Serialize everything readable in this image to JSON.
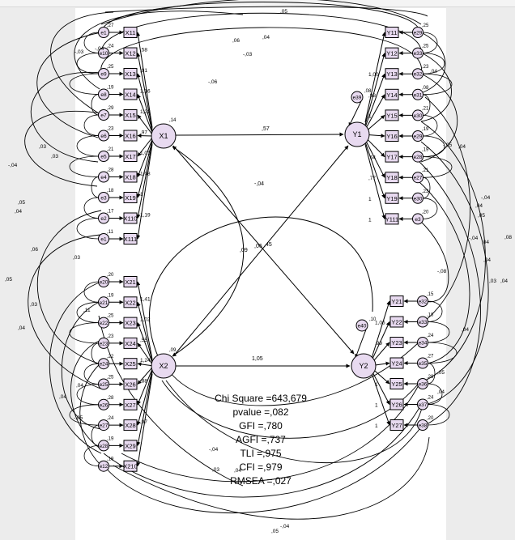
{
  "latent": {
    "x1": {
      "label": "X1",
      "var": ",14"
    },
    "x2": {
      "label": "X2",
      "var": ",09"
    },
    "y1": {
      "label": "Y1"
    },
    "y2": {
      "label": "Y2"
    }
  },
  "paths": {
    "x1_y1": ",57",
    "x1_y2": ",45",
    "x2_y1": ",09",
    "x2_y2": "1,05",
    "cov_x1_x2": "-,04",
    "mid_label": ",06"
  },
  "y1_disturbance": {
    "label": "e39",
    "value": ",08"
  },
  "y2_disturbance": {
    "label": "e40",
    "value": ",10"
  },
  "x1_indicators": [
    {
      "label": "X11",
      "err": "e1",
      "err_var": ",27",
      "load": ""
    },
    {
      "label": "X12",
      "err": "e10",
      "err_var": ",24",
      "load": ",58"
    },
    {
      "label": "X13",
      "err": "e9",
      "err_var": ",25",
      "load": ",91"
    },
    {
      "label": "X14",
      "err": "e8",
      "err_var": ",19",
      "load": "1,16"
    },
    {
      "label": "X15",
      "err": "e7",
      "err_var": ",29",
      "load": "1,22"
    },
    {
      "label": "X16",
      "err": "e6",
      "err_var": ",23",
      "load": ",97"
    },
    {
      "label": "X17",
      "err": "e5",
      "err_var": ",21",
      "load": "1,01"
    },
    {
      "label": "X18",
      "err": "e4",
      "err_var": ",28",
      "load": "1,08"
    },
    {
      "label": "X19",
      "err": "e3",
      "err_var": ",18",
      "load": "1"
    },
    {
      "label": "X110",
      "err": "e2",
      "err_var": ",17",
      "load": "1,19"
    },
    {
      "label": "X111",
      "err": "e1",
      "err_var": ",11",
      "load": ""
    }
  ],
  "x2_indicators": [
    {
      "label": "X21",
      "err": "e20",
      "err_var": ",20",
      "load": ""
    },
    {
      "label": "X22",
      "err": "e21",
      "err_var": ",19",
      "load": "1,41"
    },
    {
      "label": "X23",
      "err": "e22",
      "err_var": ",25",
      "load": "1,02"
    },
    {
      "label": "X24",
      "err": "e23",
      "err_var": ",23",
      "load": ",55"
    },
    {
      "label": "X25",
      "err": "e24",
      "err_var": ",22",
      "load": "1,24"
    },
    {
      "label": "X26",
      "err": "e25",
      "err_var": ",25",
      "load": ",88"
    },
    {
      "label": "X27",
      "err": "e26",
      "err_var": ",28",
      "load": ""
    },
    {
      "label": "X28",
      "err": "e27",
      "err_var": ",24",
      "load": ",97"
    },
    {
      "label": "X29",
      "err": "e28",
      "err_var": ",19",
      "load": ""
    },
    {
      "label": "X210",
      "err": "e12",
      "err_var": ",19",
      "load": ""
    }
  ],
  "y1_indicators": [
    {
      "label": "Y11",
      "err": "e29",
      "err_var": ",25",
      "load": ""
    },
    {
      "label": "Y12",
      "err": "e33",
      "err_var": ",25",
      "load": ""
    },
    {
      "label": "Y13",
      "err": "e32",
      "err_var": ",23",
      "load": "1,00"
    },
    {
      "label": "Y14",
      "err": "e31",
      "err_var": ",08",
      "load": ",98"
    },
    {
      "label": "Y15",
      "err": "e30",
      "err_var": ",21",
      "load": "1"
    },
    {
      "label": "Y16",
      "err": "e29",
      "err_var": ",19",
      "load": ""
    },
    {
      "label": "Y17",
      "err": "e28",
      "err_var": ",19",
      "load": ",64"
    },
    {
      "label": "Y18",
      "err": "e27",
      "err_var": ",21",
      "load": ",77"
    },
    {
      "label": "Y19",
      "err": "e30",
      "err_var": ",23",
      "load": "1"
    },
    {
      "label": "Y111",
      "err": "e3",
      "err_var": ",20",
      "load": "1"
    }
  ],
  "y2_indicators": [
    {
      "label": "Y21",
      "err": "e32",
      "err_var": ",15",
      "load": ""
    },
    {
      "label": "Y22",
      "err": "e33",
      "err_var": ",18",
      "load": "1,06"
    },
    {
      "label": "Y23",
      "err": "e34",
      "err_var": ",24",
      "load": ",99"
    },
    {
      "label": "Y24",
      "err": "e35",
      "err_var": ",27",
      "load": ""
    },
    {
      "label": "Y25",
      "err": "e36",
      "err_var": ",28",
      "load": "1"
    },
    {
      "label": "Y26",
      "err": "e37",
      "err_var": ",24",
      "load": "1"
    },
    {
      "label": "Y27",
      "err": "e38",
      "err_var": ",20",
      "load": "1"
    }
  ],
  "cov_labels": [
    ",05",
    ",06",
    ",04",
    "-,03",
    "-,06",
    ",04",
    "-,04",
    "-,03",
    ",03",
    ",03",
    "-,04",
    ",05",
    ",04",
    ",03",
    ",06",
    ",05",
    ",03",
    ",11",
    ",04",
    ",04",
    ",04",
    "-,05",
    "-,04",
    ",03",
    ",04",
    "-,05",
    ",04",
    "-,04",
    ",04",
    ",05",
    "-,04",
    ",08",
    ",04",
    ",03",
    ",04",
    "-,08",
    ",04",
    ",05",
    ",04",
    ",05",
    "-,04",
    ",04"
  ],
  "fit": {
    "chi": "Chi Square =643,679",
    "pvalue": "pvalue =,082",
    "gfi": "GFI =,780",
    "agfi": "AGFI =,737",
    "tli": "TLI =,975",
    "cfi": "CFI =,979",
    "rmsea": "RMSEA =,027"
  },
  "colors": {
    "panel": "#ffffff",
    "node_fill": "#e8daf0",
    "line": "#000000"
  }
}
